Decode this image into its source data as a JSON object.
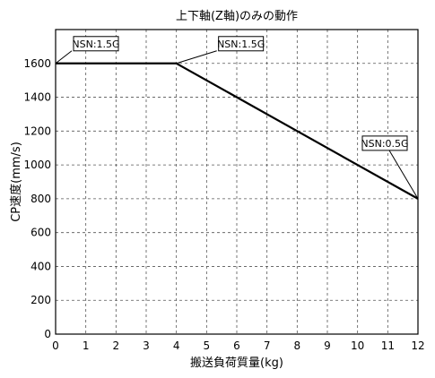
{
  "chart_data": {
    "type": "line",
    "title": "上下軸(Z軸)のみの動作",
    "xlabel": "搬送負荷質量(kg)",
    "ylabel": "CP速度(mm/s)",
    "xlim": [
      0,
      12
    ],
    "ylim": [
      0,
      1800
    ],
    "xticks": [
      0,
      1,
      2,
      3,
      4,
      5,
      6,
      7,
      8,
      9,
      10,
      11,
      12
    ],
    "yticks": [
      0,
      200,
      400,
      600,
      800,
      1000,
      1200,
      1400,
      1600
    ],
    "grid": true,
    "series": [
      {
        "x": [
          0,
          4,
          12
        ],
        "y": [
          1600,
          1600,
          800
        ]
      }
    ],
    "annotations": [
      {
        "text": "NSN:1.5G",
        "x": 0,
        "y": 1600,
        "side": "right"
      },
      {
        "text": "NSN:1.5G",
        "x": 4,
        "y": 1600,
        "side": "right"
      },
      {
        "text": "NSN:0.5G",
        "x": 12,
        "y": 800,
        "side": "left"
      }
    ]
  }
}
